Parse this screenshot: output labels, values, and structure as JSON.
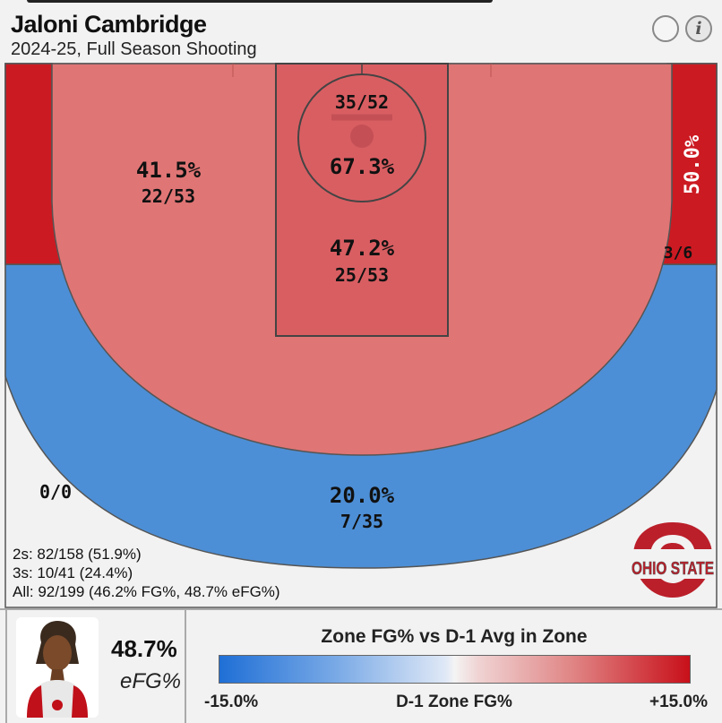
{
  "header": {
    "player_name": "Jaloni Cambridge",
    "subtitle": "2024-25, Full Season Shooting",
    "info_label": "i"
  },
  "colors": {
    "above_avg_strong": "#cc1a22",
    "above_avg_mild": "#e07575",
    "paint": "#d95e62",
    "below_avg": "#4d8fd6",
    "background": "#f2f2f2"
  },
  "chart_data": {
    "type": "heatmap",
    "title": "2024-25, Full Season Shooting",
    "zones": [
      {
        "zone": "restricted-area",
        "fg_pct": "67.3%",
        "made_attempts": "35/52",
        "made": 35,
        "attempts": 52
      },
      {
        "zone": "paint",
        "fg_pct": "47.2%",
        "made_attempts": "25/53",
        "made": 25,
        "attempts": 53
      },
      {
        "zone": "mid-range",
        "fg_pct": "41.5%",
        "made_attempts": "22/53",
        "made": 22,
        "attempts": 53
      },
      {
        "zone": "right-corner-three",
        "fg_pct": "50.0%",
        "made_attempts": "3/6",
        "made": 3,
        "attempts": 6
      },
      {
        "zone": "above-break-three",
        "fg_pct": "20.0%",
        "made_attempts": "7/35",
        "made": 7,
        "attempts": 35
      },
      {
        "zone": "left-corner-three",
        "fg_pct": "",
        "made_attempts": "",
        "made": null,
        "attempts": null
      },
      {
        "zone": "deep-three",
        "fg_pct": "",
        "made_attempts": "0/0",
        "made": 0,
        "attempts": 0
      }
    ]
  },
  "summary": {
    "twos": "2s: 82/158 (51.9%)",
    "threes": "3s: 10/41 (24.4%)",
    "all": "All: 92/199 (46.2% FG%, 48.7% eFG%)"
  },
  "team_logo_text": "OHIO STATE",
  "footer": {
    "efg_value": "48.7%",
    "efg_label": "eFG%"
  },
  "legend": {
    "title": "Zone FG% vs D-1 Avg in Zone",
    "min_label": "-15.0%",
    "center_label": "D-1 Zone FG%",
    "max_label": "+15.0%"
  }
}
